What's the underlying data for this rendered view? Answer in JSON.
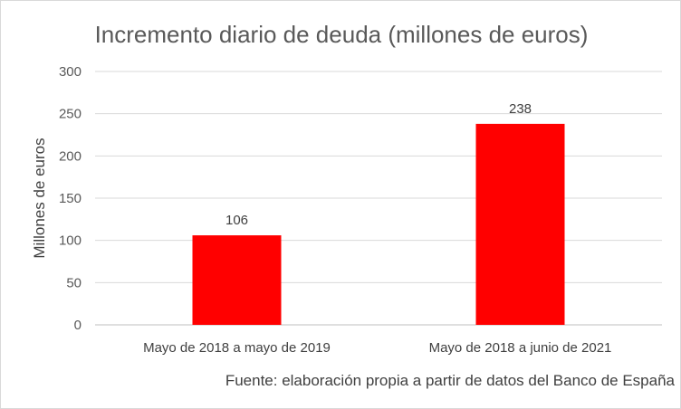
{
  "chart_data": {
    "type": "bar",
    "title": "Incremento diario de deuda (millones de euros)",
    "ylabel": "Millones de euros",
    "xlabel": "",
    "categories": [
      "Mayo de 2018 a mayo de 2019",
      "Mayo de 2018 a junio de 2021"
    ],
    "values": [
      106,
      238
    ],
    "data_labels": [
      "106",
      "238"
    ],
    "ylim": [
      0,
      300
    ],
    "yticks": [
      0,
      50,
      100,
      150,
      200,
      250,
      300
    ],
    "ytick_labels": [
      "0",
      "50",
      "100",
      "150",
      "200",
      "250",
      "300"
    ],
    "grid": true,
    "legend": "none",
    "bar_color": "#ff0000"
  },
  "source_note": "Fuente: elaboración propia a partir de datos del Banco de España"
}
